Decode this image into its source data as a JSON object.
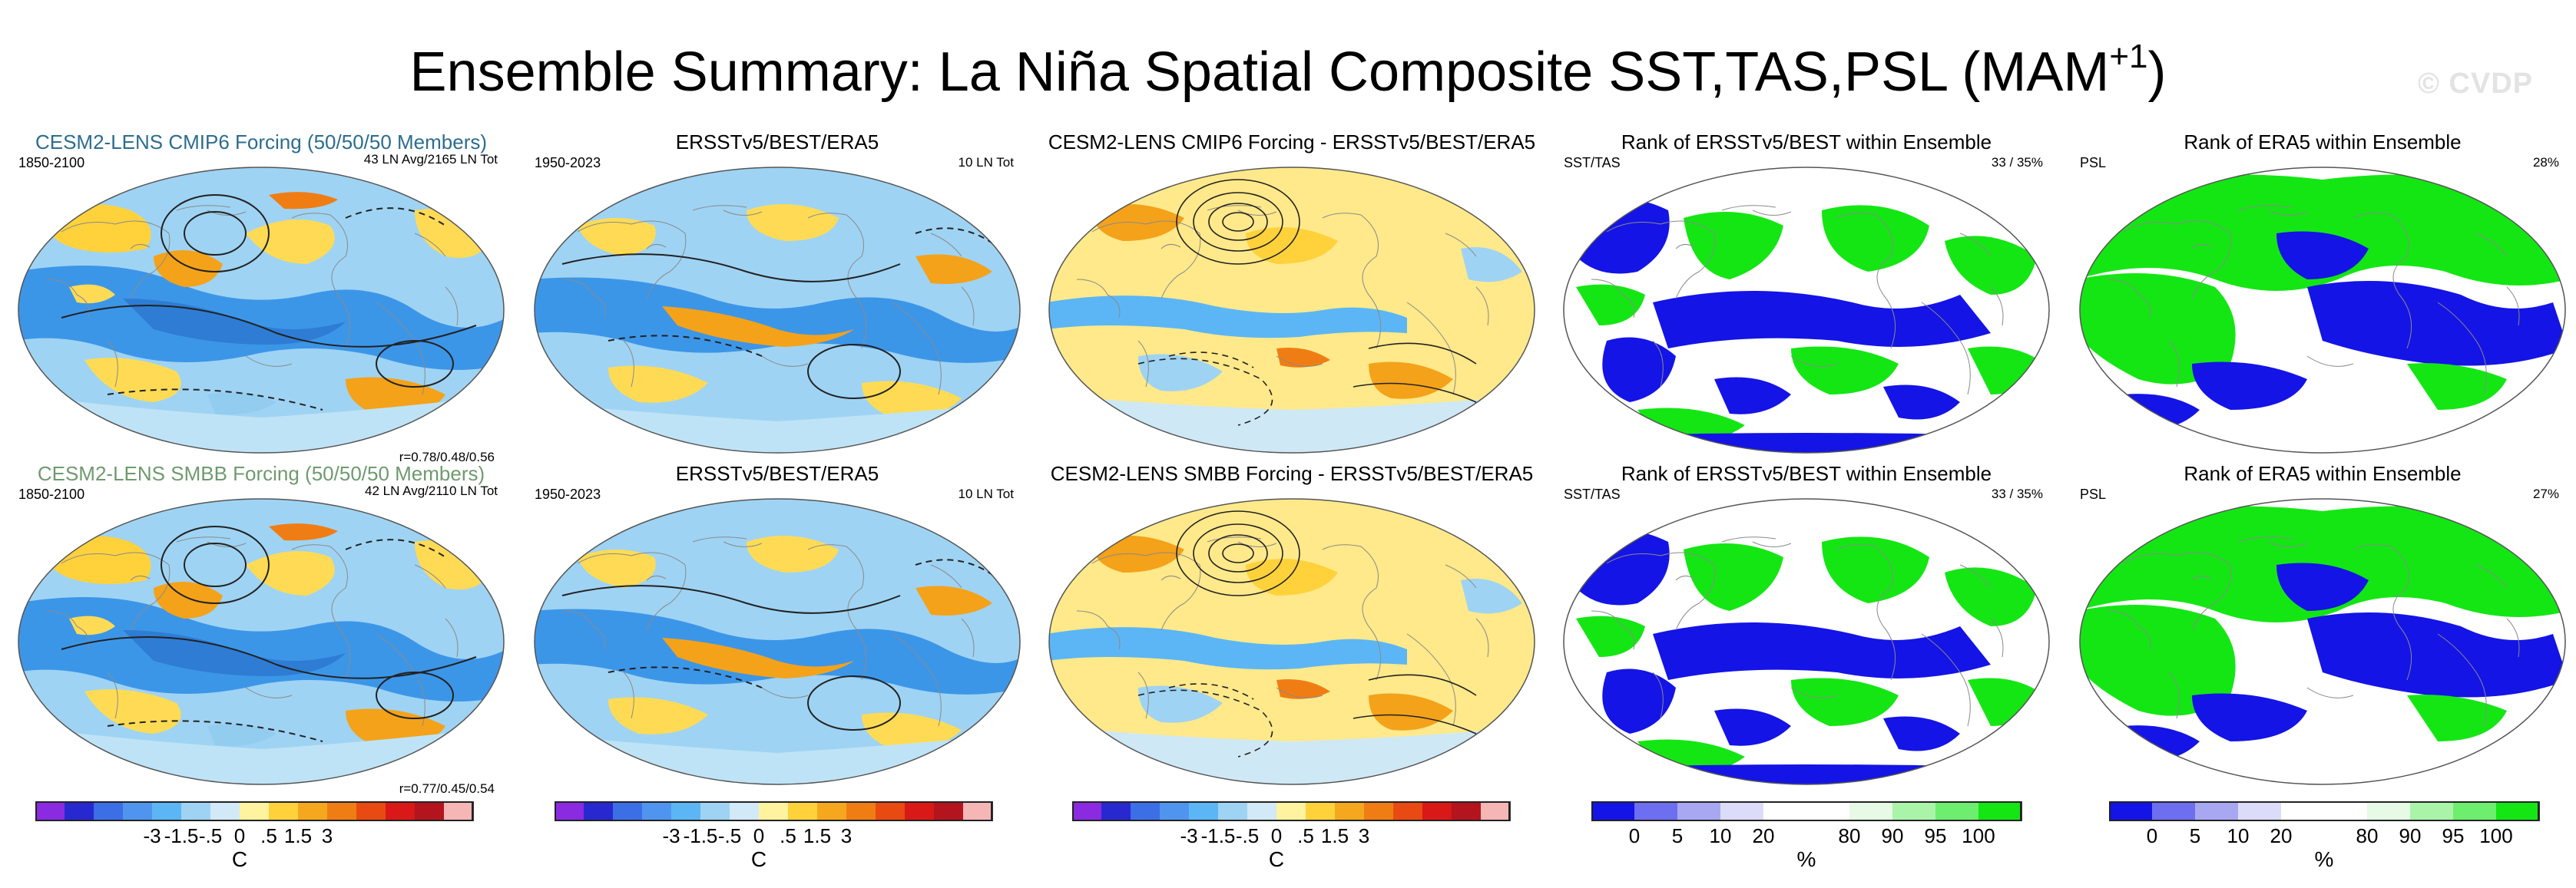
{
  "title": {
    "text": "Ensemble Summary: La Niña Spatial Composite SST,TAS,PSL (MAM",
    "sup": "+1",
    "close": ")"
  },
  "watermark": "© CVDP",
  "rows": [
    {
      "model": {
        "title": "CESM2-LENS CMIP6 Forcing (50/50/50 Members)",
        "years": "1850-2100",
        "count": "43 LN Avg/2165 LN Tot",
        "corr": "r=0.78/0.48/0.56"
      },
      "obs": {
        "title": "ERSSTv5/BEST/ERA5",
        "years": "1950-2023",
        "count": "10 LN Tot"
      },
      "diff": {
        "title": "CESM2-LENS CMIP6 Forcing - ERSSTv5/BEST/ERA5"
      },
      "rank1": {
        "title": "Rank of ERSSTv5/BEST within Ensemble",
        "left": "SST/TAS",
        "right": "33 /  35%"
      },
      "rank2": {
        "title": "Rank of ERA5 within Ensemble",
        "left": "PSL",
        "right": "28%"
      }
    },
    {
      "model": {
        "title": "CESM2-LENS SMBB Forcing (50/50/50 Members)",
        "years": "1850-2100",
        "count": "42 LN Avg/2110 LN Tot",
        "corr": "r=0.77/0.45/0.54"
      },
      "obs": {
        "title": "ERSSTv5/BEST/ERA5",
        "years": "1950-2023",
        "count": "10 LN Tot"
      },
      "diff": {
        "title": "CESM2-LENS SMBB Forcing - ERSSTv5/BEST/ERA5"
      },
      "rank1": {
        "title": "Rank of ERSSTv5/BEST within Ensemble",
        "left": "SST/TAS",
        "right": "33 /  35%"
      },
      "rank2": {
        "title": "Rank of ERA5 within Ensemble",
        "left": "PSL",
        "right": "27%"
      }
    }
  ],
  "colorbars": {
    "temp": {
      "unit": "C",
      "labels": [
        "-3",
        "-1.5",
        "-.5",
        "0",
        ".5",
        "1.5",
        "3"
      ],
      "colors": [
        "#8a2be2",
        "#2828d0",
        "#3c6ee6",
        "#4f95f0",
        "#5cb6f5",
        "#9fd3f3",
        "#d2e9f7",
        "#fff3a0",
        "#ffd23c",
        "#f5a81e",
        "#f07d14",
        "#e84a12",
        "#d91818",
        "#b4141e",
        "#f6b6b6"
      ]
    },
    "rank": {
      "unit": "%",
      "labels": [
        "0",
        "5",
        "10",
        "20",
        "80",
        "90",
        "95",
        "100"
      ],
      "colors": [
        "#1414e6",
        "#6e6ef0",
        "#a8a8f2",
        "#dcdcfa",
        "#ffffff",
        "#ffffff",
        "#e6fae6",
        "#aaf4aa",
        "#6eee6e",
        "#14e614"
      ]
    }
  },
  "palette": {
    "cold": "#2e8bd9",
    "cool": "#92cdf0",
    "neutral": "#cfe8f5",
    "warm": "#ffdb55",
    "hot": "#f4a21a",
    "rank_low": "#1414e6",
    "rank_high": "#14e614"
  }
}
